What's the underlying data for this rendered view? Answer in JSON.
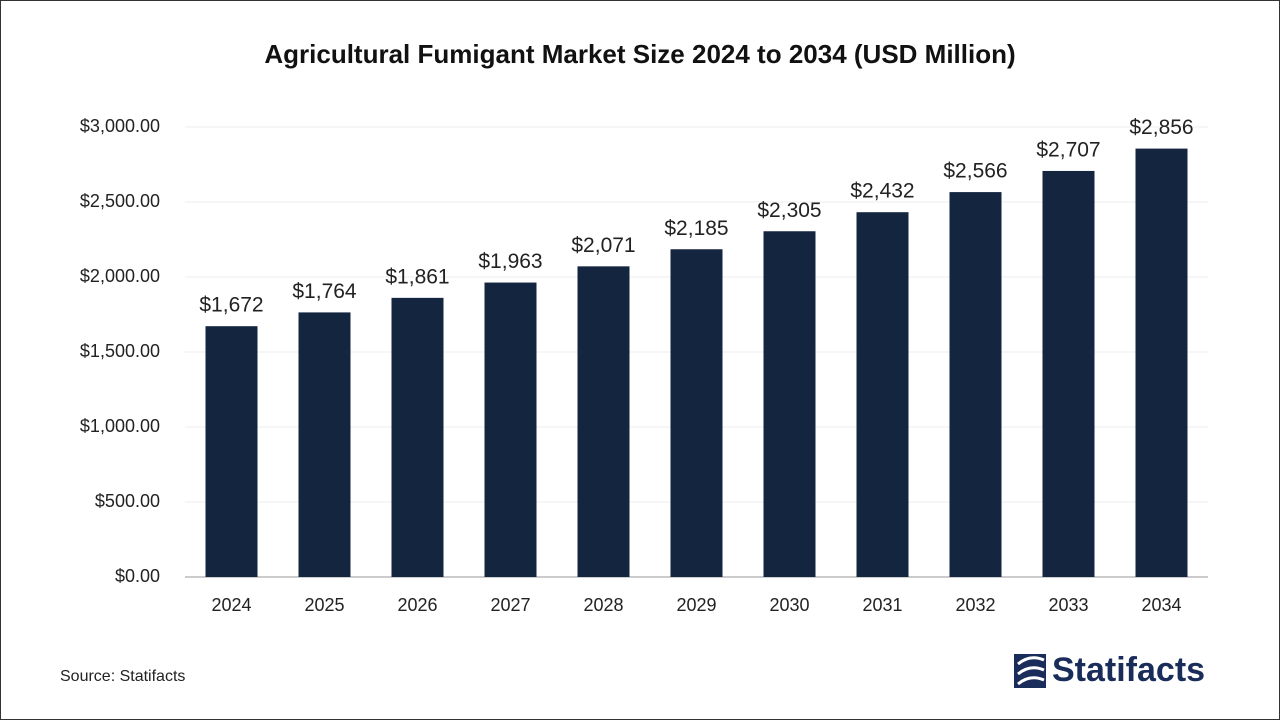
{
  "chart_data": {
    "type": "bar",
    "title": "Agricultural Fumigant Market Size 2024 to 2034 (USD Million)",
    "categories": [
      "2024",
      "2025",
      "2026",
      "2027",
      "2028",
      "2029",
      "2030",
      "2031",
      "2032",
      "2033",
      "2034"
    ],
    "values": [
      1672,
      1764,
      1861,
      1963,
      2071,
      2185,
      2305,
      2432,
      2566,
      2707,
      2856
    ],
    "value_labels": [
      "$1,672",
      "$1,764",
      "$1,861",
      "$1,963",
      "$2,071",
      "$2,185",
      "$2,305",
      "$2,432",
      "$2,566",
      "$2,707",
      "$2,856"
    ],
    "color": "#13253f",
    "ylim": [
      0,
      3000
    ],
    "yticks": [
      {
        "value": 0,
        "label": "$0.00"
      },
      {
        "value": 500,
        "label": "$500.00"
      },
      {
        "value": 1000,
        "label": "$1,000.00"
      },
      {
        "value": 1500,
        "label": "$1,500.00"
      },
      {
        "value": 2000,
        "label": "$2,000.00"
      },
      {
        "value": 2500,
        "label": "$2,500.00"
      },
      {
        "value": 3000,
        "label": "$3,000.00"
      }
    ],
    "grid": true,
    "source": "Source: Statifacts",
    "logo": "Statifacts"
  }
}
